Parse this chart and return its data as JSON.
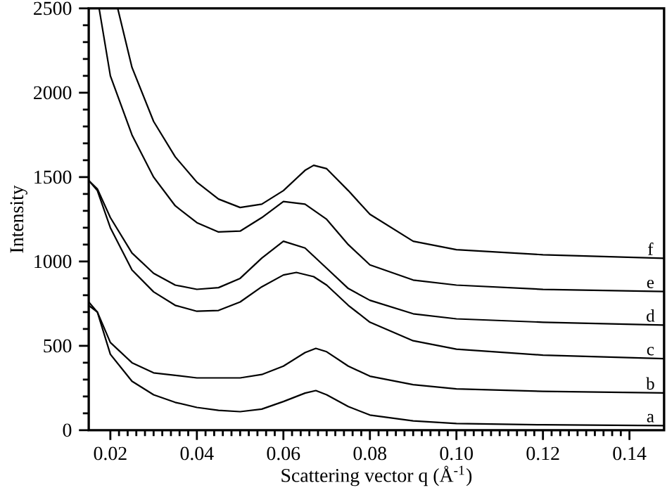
{
  "chart_data": {
    "type": "line",
    "xlabel": "Scattering vector q (Å$^{-1}$)",
    "ylabel": "Intensity",
    "xlim": [
      0.015,
      0.148
    ],
    "ylim": [
      0,
      2500
    ],
    "xticks": [
      {
        "value": 0.02,
        "label": "0.02"
      },
      {
        "value": 0.04,
        "label": "0.04"
      },
      {
        "value": 0.06,
        "label": "0.06"
      },
      {
        "value": 0.08,
        "label": "0.08"
      },
      {
        "value": 0.1,
        "label": "0.10"
      },
      {
        "value": 0.12,
        "label": "0.12"
      },
      {
        "value": 0.14,
        "label": "0.14"
      }
    ],
    "yticks": [
      0,
      500,
      1000,
      1500,
      2000,
      2500
    ],
    "grid": false,
    "legend": false,
    "marker": "none",
    "line_style": "solid",
    "series": [
      {
        "name": "a",
        "color": "#000000",
        "x": [
          0.015,
          0.017,
          0.02,
          0.025,
          0.03,
          0.035,
          0.04,
          0.045,
          0.05,
          0.055,
          0.06,
          0.065,
          0.0675,
          0.07,
          0.075,
          0.08,
          0.09,
          0.1,
          0.12,
          0.148
        ],
        "values": [
          760,
          700,
          450,
          290,
          210,
          165,
          135,
          118,
          110,
          125,
          170,
          220,
          235,
          210,
          140,
          90,
          55,
          40,
          32,
          27
        ]
      },
      {
        "name": "b",
        "color": "#000000",
        "x": [
          0.015,
          0.017,
          0.02,
          0.025,
          0.03,
          0.04,
          0.05,
          0.055,
          0.06,
          0.065,
          0.0675,
          0.07,
          0.075,
          0.08,
          0.09,
          0.1,
          0.12,
          0.148
        ],
        "values": [
          740,
          700,
          520,
          400,
          340,
          310,
          310,
          330,
          380,
          460,
          485,
          465,
          380,
          320,
          270,
          245,
          230,
          221
        ]
      },
      {
        "name": "c",
        "color": "#000000",
        "x": [
          0.015,
          0.017,
          0.02,
          0.025,
          0.03,
          0.035,
          0.04,
          0.045,
          0.05,
          0.055,
          0.06,
          0.063,
          0.067,
          0.07,
          0.075,
          0.08,
          0.09,
          0.1,
          0.12,
          0.148
        ],
        "values": [
          1480,
          1420,
          1200,
          950,
          820,
          740,
          705,
          710,
          760,
          850,
          920,
          935,
          910,
          860,
          740,
          640,
          530,
          480,
          445,
          424
        ]
      },
      {
        "name": "d",
        "color": "#000000",
        "x": [
          0.015,
          0.017,
          0.02,
          0.025,
          0.03,
          0.035,
          0.04,
          0.045,
          0.05,
          0.055,
          0.06,
          0.065,
          0.07,
          0.075,
          0.08,
          0.09,
          0.1,
          0.12,
          0.148
        ],
        "values": [
          1480,
          1430,
          1260,
          1050,
          930,
          860,
          835,
          845,
          900,
          1020,
          1120,
          1080,
          960,
          840,
          770,
          690,
          660,
          640,
          623
        ]
      },
      {
        "name": "e",
        "color": "#000000",
        "x": [
          0.0174,
          0.02,
          0.025,
          0.03,
          0.035,
          0.04,
          0.045,
          0.05,
          0.055,
          0.06,
          0.065,
          0.07,
          0.075,
          0.08,
          0.09,
          0.1,
          0.12,
          0.148
        ],
        "values": [
          2500,
          2100,
          1750,
          1500,
          1330,
          1230,
          1175,
          1180,
          1260,
          1355,
          1340,
          1250,
          1100,
          980,
          890,
          860,
          835,
          822
        ]
      },
      {
        "name": "f",
        "color": "#000000",
        "x": [
          0.0217,
          0.025,
          0.03,
          0.035,
          0.04,
          0.045,
          0.05,
          0.055,
          0.06,
          0.065,
          0.067,
          0.07,
          0.075,
          0.08,
          0.09,
          0.1,
          0.12,
          0.148
        ],
        "values": [
          2500,
          2150,
          1830,
          1620,
          1470,
          1370,
          1320,
          1340,
          1420,
          1540,
          1570,
          1550,
          1420,
          1280,
          1120,
          1070,
          1040,
          1019
        ]
      }
    ]
  }
}
